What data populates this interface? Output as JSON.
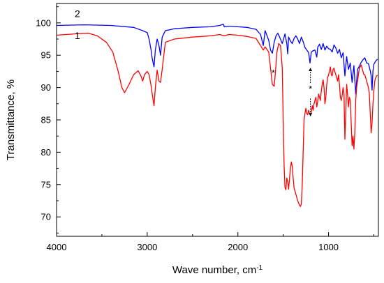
{
  "chart_data": {
    "type": "line",
    "title": "",
    "xlabel": "Wave number, cm",
    "xlabel_superscript": "-1",
    "ylabel": "Transmittance, %",
    "xlim": [
      4000,
      450
    ],
    "ylim": [
      67,
      103
    ],
    "x_reversed": true,
    "grid": false,
    "x_ticks": [
      4000,
      3000,
      2000,
      1000
    ],
    "x_tick_labels": [
      "4000",
      "3000",
      "2000",
      "1000"
    ],
    "y_ticks": [
      70,
      75,
      80,
      85,
      90,
      95,
      100
    ],
    "y_tick_labels": [
      "70",
      "75",
      "80",
      "85",
      "90",
      "95",
      "100"
    ],
    "annotations": [
      {
        "text": "*",
        "x": 1610,
        "y": 91.8
      },
      {
        "text": "*",
        "x": 1200,
        "y": 89.3
      }
    ],
    "arrow": {
      "x": 1200,
      "y_from": 89.5,
      "y_to_top": 92.8,
      "y_to_bottom": 85.8
    },
    "series": [
      {
        "name": "2",
        "label_pos": {
          "x": 3800,
          "y": 100.9
        },
        "color": "#0000ff",
        "x": [
          4000,
          3700,
          3400,
          3150,
          3050,
          3000,
          2980,
          2960,
          2945,
          2925,
          2910,
          2890,
          2870,
          2853,
          2835,
          2800,
          2700,
          2500,
          2300,
          2200,
          2160,
          2150,
          2100,
          2000,
          1900,
          1800,
          1750,
          1720,
          1700,
          1660,
          1640,
          1620,
          1600,
          1580,
          1560,
          1540,
          1510,
          1480,
          1460,
          1450,
          1440,
          1420,
          1400,
          1380,
          1360,
          1340,
          1320,
          1300,
          1280,
          1260,
          1240,
          1220,
          1205,
          1190,
          1170,
          1150,
          1130,
          1120,
          1100,
          1080,
          1060,
          1040,
          1020,
          1000,
          980,
          960,
          940,
          920,
          900,
          880,
          860,
          840,
          820,
          800,
          780,
          760,
          740,
          720,
          700,
          680,
          660,
          640,
          620,
          600,
          580,
          560,
          540,
          530,
          520,
          510,
          500,
          480,
          460
        ],
        "y": [
          99.6,
          99.7,
          99.6,
          99.3,
          98.8,
          98.5,
          97.5,
          96,
          94.5,
          93.2,
          95.8,
          97.5,
          96.5,
          95,
          97.8,
          98.8,
          99.1,
          99.3,
          99.4,
          99.6,
          99.8,
          99.4,
          99.5,
          99.4,
          99.3,
          99.0,
          98.2,
          96.5,
          98.8,
          97.3,
          95.8,
          95.3,
          97,
          98,
          98.4,
          97.8,
          96.8,
          98.3,
          96.8,
          95.2,
          97.8,
          97.2,
          96.8,
          97.6,
          98,
          97.5,
          96.8,
          97.8,
          97.1,
          96.2,
          95.8,
          95.4,
          93.8,
          95.5,
          95.7,
          95.8,
          94.7,
          96.2,
          96.7,
          95.9,
          96.8,
          95.8,
          96.4,
          96.0,
          95.9,
          95.5,
          96.6,
          96.1,
          95.3,
          95.9,
          94.6,
          95.4,
          91.8,
          94.8,
          92.8,
          93.8,
          90.8,
          93.4,
          89.0,
          92.8,
          93.3,
          93.9,
          94.3,
          94.6,
          93.8,
          93.7,
          92.6,
          91.8,
          89.6,
          92.6,
          93.6,
          94.1,
          94.4
        ]
      },
      {
        "name": "1",
        "label_pos": {
          "x": 3800,
          "y": 97.5
        },
        "color": "#ff0000",
        "x": [
          4000,
          3800,
          3650,
          3550,
          3450,
          3380,
          3320,
          3280,
          3250,
          3200,
          3150,
          3100,
          3070,
          3050,
          3030,
          3000,
          2980,
          2960,
          2945,
          2925,
          2910,
          2890,
          2870,
          2853,
          2835,
          2800,
          2700,
          2500,
          2300,
          2200,
          2150,
          2100,
          2000,
          1900,
          1800,
          1750,
          1720,
          1700,
          1660,
          1640,
          1620,
          1600,
          1585,
          1570,
          1550,
          1530,
          1510,
          1500,
          1490,
          1480,
          1470,
          1460,
          1450,
          1440,
          1430,
          1420,
          1410,
          1400,
          1390,
          1380,
          1360,
          1340,
          1320,
          1310,
          1300,
          1290,
          1280,
          1270,
          1260,
          1250,
          1240,
          1230,
          1220,
          1210,
          1200,
          1190,
          1180,
          1170,
          1160,
          1150,
          1140,
          1130,
          1120,
          1110,
          1100,
          1090,
          1080,
          1070,
          1060,
          1050,
          1040,
          1030,
          1020,
          1010,
          1000,
          990,
          980,
          970,
          960,
          950,
          940,
          930,
          920,
          910,
          900,
          890,
          880,
          870,
          860,
          850,
          840,
          830,
          820,
          810,
          800,
          790,
          780,
          770,
          760,
          750,
          740,
          730,
          720,
          710,
          700,
          690,
          680,
          670,
          660,
          650,
          640,
          630,
          620,
          610,
          600,
          590,
          580,
          570,
          560,
          550,
          540,
          530,
          520,
          510,
          500,
          490,
          480,
          470,
          460
        ],
        "y": [
          98.1,
          98.3,
          98.4,
          98.0,
          97.0,
          95.5,
          92.5,
          90.0,
          89.2,
          90.5,
          92.0,
          92.6,
          91.8,
          91.0,
          92.0,
          92.5,
          92.0,
          90.5,
          89.0,
          87.2,
          90.0,
          92.7,
          91.0,
          90.8,
          92.8,
          97.0,
          97.5,
          97.8,
          98.0,
          98.2,
          98.0,
          98.2,
          98.1,
          97.9,
          97.6,
          96.5,
          95.8,
          96.3,
          95.5,
          93.0,
          90.5,
          90.2,
          92.5,
          95.5,
          96.8,
          96.5,
          93.0,
          85.0,
          78.0,
          74.5,
          74.2,
          76.0,
          75.5,
          74.3,
          76.0,
          77.5,
          78.5,
          77.8,
          76.0,
          74.5,
          73.5,
          72.5,
          71.8,
          71.6,
          72.0,
          75.0,
          80.0,
          85.0,
          86.0,
          86.8,
          86.0,
          85.8,
          86.5,
          86.0,
          85.8,
          86.2,
          87.2,
          86.5,
          87.5,
          88.0,
          88.5,
          87.0,
          87.8,
          89.0,
          88.5,
          88.0,
          89.5,
          90.5,
          91.2,
          90.0,
          87.5,
          88.5,
          90.5,
          91.5,
          92.0,
          92.5,
          93.2,
          92.0,
          91.8,
          92.8,
          93.0,
          92.4,
          92.0,
          91.5,
          91.0,
          92.0,
          90.5,
          88.5,
          88.0,
          88.8,
          90.0,
          89.0,
          82.0,
          86.0,
          90.5,
          89.0,
          87.0,
          88.5,
          88.0,
          84.5,
          81.0,
          82.5,
          80.5,
          83.0,
          88.0,
          90.0,
          91.0,
          92.0,
          93.0,
          93.2,
          93.5,
          93.0,
          92.5,
          92.0,
          92.0,
          91.5,
          91.0,
          90.5,
          90.0,
          89.0,
          86.0,
          83.0,
          84.5,
          87.5,
          89.5,
          91.0,
          91.5,
          91.8,
          91.9
        ]
      }
    ]
  }
}
